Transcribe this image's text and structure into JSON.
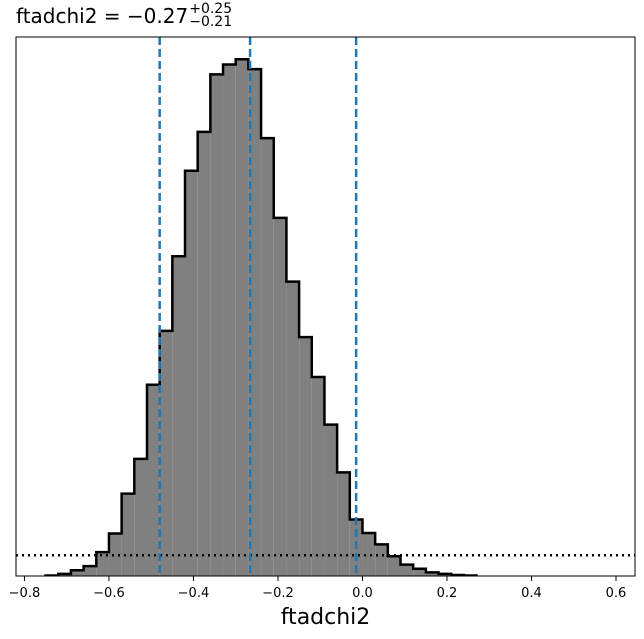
{
  "title": {
    "param": "ftadchi2",
    "equals": " = ",
    "median": "−0.27",
    "err_plus": "+0.25",
    "err_minus": "−0.21"
  },
  "chart_data": {
    "type": "histogram",
    "xlabel": "ftadchi2",
    "ylabel": "",
    "xlim": [
      -0.82,
      0.645
    ],
    "ylim": [
      0,
      1.04
    ],
    "xticks": [
      -0.8,
      -0.6,
      -0.4,
      -0.2,
      0.0,
      0.2,
      0.4,
      0.6
    ],
    "xtick_labels": [
      "−0.8",
      "−0.6",
      "−0.4",
      "−0.2",
      "0.0",
      "0.2",
      "0.4",
      "0.6"
    ],
    "bin_width": 0.03,
    "bin_start": -0.75,
    "histogram": [
      0.001,
      0.004,
      0.011,
      0.019,
      0.046,
      0.082,
      0.159,
      0.226,
      0.369,
      0.473,
      0.617,
      0.782,
      0.857,
      0.968,
      0.987,
      0.997,
      0.978,
      0.845,
      0.691,
      0.568,
      0.461,
      0.384,
      0.292,
      0.2,
      0.109,
      0.083,
      0.061,
      0.038,
      0.022,
      0.014,
      0.007,
      0.004,
      0.002,
      0.001
    ],
    "quantile_lines": [
      -0.48,
      -0.266,
      -0.015
    ],
    "quantile_style": {
      "color": "#1f77b4",
      "linestyle": "dashed"
    },
    "prior_line": {
      "style": "dotted",
      "color": "#000000",
      "level": 0.04
    },
    "fill_color": "#808080",
    "edge_color": "#000000",
    "grid": false
  }
}
